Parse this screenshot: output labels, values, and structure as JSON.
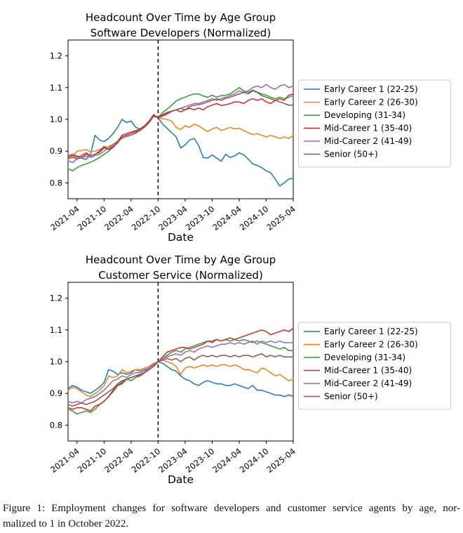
{
  "figure": {
    "caption_line1": "Figure 1: Employment changes for software developers and customer service agents by age, nor-",
    "caption_line2": "malized to 1 in October 2022."
  },
  "legend_border_color": "#cccccc",
  "vline_color": "#000000",
  "chart_data": [
    {
      "type": "line",
      "title": "Headcount Over Time by Age Group",
      "subtitle": "Software Developers (Normalized)",
      "xlabel": "Date",
      "ylabel": "",
      "ylim": [
        0.75,
        1.25
      ],
      "yticks": [
        0.8,
        0.9,
        1.0,
        1.1,
        1.2
      ],
      "grid": false,
      "legend_position": "center-right-outside",
      "vline_date": "2022-10",
      "x_dates": [
        "2021-02",
        "2021-03",
        "2021-04",
        "2021-05",
        "2021-06",
        "2021-07",
        "2021-08",
        "2021-09",
        "2021-10",
        "2021-11",
        "2021-12",
        "2022-01",
        "2022-02",
        "2022-03",
        "2022-04",
        "2022-05",
        "2022-06",
        "2022-07",
        "2022-08",
        "2022-09",
        "2022-10",
        "2022-11",
        "2022-12",
        "2023-01",
        "2023-02",
        "2023-03",
        "2023-04",
        "2023-05",
        "2023-06",
        "2023-07",
        "2023-08",
        "2023-09",
        "2023-10",
        "2023-11",
        "2023-12",
        "2024-01",
        "2024-02",
        "2024-03",
        "2024-04",
        "2024-05",
        "2024-06",
        "2024-07",
        "2024-08",
        "2024-09",
        "2024-10",
        "2024-11",
        "2024-12",
        "2025-01",
        "2025-02",
        "2025-03",
        "2025-04"
      ],
      "xtick_labels": [
        "2021-04",
        "2021-10",
        "2022-04",
        "2022-10",
        "2023-04",
        "2023-10",
        "2024-04",
        "2024-10",
        "2025-04"
      ],
      "series": [
        {
          "name": "Early Career 1 (22-25)",
          "color": "#1f77b4",
          "values": [
            0.885,
            0.89,
            0.885,
            0.878,
            0.874,
            0.89,
            0.95,
            0.935,
            0.93,
            0.94,
            0.955,
            0.975,
            1.0,
            0.99,
            0.995,
            0.975,
            0.97,
            0.976,
            0.99,
            1.015,
            1.005,
            0.985,
            0.972,
            0.958,
            0.945,
            0.91,
            0.92,
            0.935,
            0.94,
            0.918,
            0.88,
            0.878,
            0.888,
            0.878,
            0.868,
            0.89,
            0.88,
            0.885,
            0.895,
            0.888,
            0.875,
            0.86,
            0.855,
            0.848,
            0.838,
            0.832,
            0.812,
            0.79,
            0.8,
            0.812,
            0.815
          ]
        },
        {
          "name": "Early Career 2 (26-30)",
          "color": "#ff7f0e",
          "values": [
            0.89,
            0.885,
            0.9,
            0.902,
            0.905,
            0.898,
            0.9,
            0.905,
            0.91,
            0.915,
            0.922,
            0.932,
            0.95,
            0.955,
            0.96,
            0.965,
            0.97,
            0.976,
            0.99,
            1.012,
            1.005,
            1.002,
            1.0,
            0.995,
            0.975,
            0.968,
            0.98,
            0.975,
            0.985,
            0.98,
            0.97,
            0.962,
            0.97,
            0.975,
            0.965,
            0.97,
            0.975,
            0.97,
            0.972,
            0.965,
            0.958,
            0.952,
            0.955,
            0.95,
            0.945,
            0.95,
            0.945,
            0.94,
            0.945,
            0.94,
            0.95
          ]
        },
        {
          "name": "Developing (31-34)",
          "color": "#2ca02c",
          "values": [
            0.845,
            0.838,
            0.848,
            0.855,
            0.86,
            0.865,
            0.872,
            0.88,
            0.89,
            0.9,
            0.912,
            0.93,
            0.945,
            0.95,
            0.955,
            0.96,
            0.966,
            0.976,
            0.99,
            1.012,
            1.005,
            1.022,
            1.032,
            1.045,
            1.058,
            1.065,
            1.07,
            1.076,
            1.08,
            1.08,
            1.074,
            1.07,
            1.076,
            1.07,
            1.075,
            1.076,
            1.08,
            1.09,
            1.1,
            1.09,
            1.085,
            1.092,
            1.086,
            1.08,
            1.076,
            1.07,
            1.065,
            1.07,
            1.065,
            1.07,
            1.075
          ]
        },
        {
          "name": "Mid-Career 1 (35-40)",
          "color": "#d62728",
          "values": [
            0.88,
            0.886,
            0.88,
            0.886,
            0.895,
            0.885,
            0.89,
            0.9,
            0.915,
            0.905,
            0.912,
            0.926,
            0.95,
            0.955,
            0.96,
            0.964,
            0.97,
            0.98,
            0.995,
            1.015,
            1.005,
            1.015,
            1.022,
            1.026,
            1.03,
            1.024,
            1.03,
            1.035,
            1.03,
            1.036,
            1.03,
            1.04,
            1.045,
            1.05,
            1.044,
            1.046,
            1.05,
            1.055,
            1.055,
            1.05,
            1.06,
            1.065,
            1.06,
            1.065,
            1.055,
            1.05,
            1.06,
            1.065,
            1.06,
            1.076,
            1.08
          ]
        },
        {
          "name": "Mid-Career 2 (41-49)",
          "color": "#9467bd",
          "values": [
            0.87,
            0.864,
            0.875,
            0.88,
            0.884,
            0.88,
            0.886,
            0.89,
            0.9,
            0.91,
            0.92,
            0.93,
            0.94,
            0.946,
            0.95,
            0.956,
            0.965,
            0.976,
            0.99,
            1.01,
            1.005,
            1.01,
            1.016,
            1.025,
            1.03,
            1.035,
            1.04,
            1.045,
            1.05,
            1.05,
            1.055,
            1.06,
            1.065,
            1.06,
            1.066,
            1.07,
            1.075,
            1.08,
            1.09,
            1.085,
            1.09,
            1.1,
            1.105,
            1.1,
            1.11,
            1.1,
            1.095,
            1.105,
            1.11,
            1.1,
            1.105
          ]
        },
        {
          "name": "Senior (50+)",
          "color": "#8c564b",
          "values": [
            0.876,
            0.88,
            0.875,
            0.88,
            0.89,
            0.885,
            0.89,
            0.896,
            0.91,
            0.905,
            0.915,
            0.925,
            0.945,
            0.95,
            0.955,
            0.96,
            0.965,
            0.976,
            0.99,
            1.01,
            1.005,
            1.012,
            1.02,
            1.025,
            1.03,
            1.035,
            1.03,
            1.04,
            1.045,
            1.046,
            1.05,
            1.055,
            1.06,
            1.065,
            1.06,
            1.066,
            1.07,
            1.075,
            1.08,
            1.085,
            1.08,
            1.09,
            1.085,
            1.075,
            1.07,
            1.065,
            1.06,
            1.055,
            1.05,
            1.045,
            1.045
          ]
        }
      ]
    },
    {
      "type": "line",
      "title": "Headcount Over Time by Age Group",
      "subtitle": "Customer Service (Normalized)",
      "xlabel": "Date",
      "ylabel": "",
      "ylim": [
        0.75,
        1.25
      ],
      "yticks": [
        0.8,
        0.9,
        1.0,
        1.1,
        1.2
      ],
      "grid": false,
      "legend_position": "center-right-outside",
      "vline_date": "2022-10",
      "x_dates": [
        "2021-02",
        "2021-03",
        "2021-04",
        "2021-05",
        "2021-06",
        "2021-07",
        "2021-08",
        "2021-09",
        "2021-10",
        "2021-11",
        "2021-12",
        "2022-01",
        "2022-02",
        "2022-03",
        "2022-04",
        "2022-05",
        "2022-06",
        "2022-07",
        "2022-08",
        "2022-09",
        "2022-10",
        "2022-11",
        "2022-12",
        "2023-01",
        "2023-02",
        "2023-03",
        "2023-04",
        "2023-05",
        "2023-06",
        "2023-07",
        "2023-08",
        "2023-09",
        "2023-10",
        "2023-11",
        "2023-12",
        "2024-01",
        "2024-02",
        "2024-03",
        "2024-04",
        "2024-05",
        "2024-06",
        "2024-07",
        "2024-08",
        "2024-09",
        "2024-10",
        "2024-11",
        "2024-12",
        "2025-01",
        "2025-02",
        "2025-03",
        "2025-04"
      ],
      "xtick_labels": [
        "2021-04",
        "2021-10",
        "2022-04",
        "2022-10",
        "2023-04",
        "2023-10",
        "2024-04",
        "2024-10",
        "2025-04"
      ],
      "series": [
        {
          "name": "Early Career 1 (22-25)",
          "color": "#1f77b4",
          "values": [
            0.915,
            0.925,
            0.92,
            0.91,
            0.905,
            0.9,
            0.91,
            0.92,
            0.935,
            0.975,
            0.97,
            0.96,
            0.965,
            0.96,
            0.965,
            0.975,
            0.97,
            0.975,
            0.98,
            0.995,
            1.0,
            0.995,
            0.985,
            0.975,
            0.97,
            0.955,
            0.945,
            0.94,
            0.93,
            0.925,
            0.935,
            0.94,
            0.935,
            0.93,
            0.93,
            0.925,
            0.925,
            0.93,
            0.925,
            0.92,
            0.915,
            0.925,
            0.91,
            0.91,
            0.905,
            0.9,
            0.895,
            0.895,
            0.89,
            0.895,
            0.89
          ]
        },
        {
          "name": "Early Career 2 (26-30)",
          "color": "#ff7f0e",
          "values": [
            0.91,
            0.92,
            0.915,
            0.905,
            0.895,
            0.89,
            0.9,
            0.91,
            0.925,
            0.955,
            0.95,
            0.955,
            0.975,
            0.965,
            0.97,
            0.975,
            0.975,
            0.98,
            0.985,
            0.995,
            1.0,
            1.005,
            1.0,
            0.995,
            0.985,
            0.96,
            0.98,
            0.985,
            0.98,
            0.985,
            0.99,
            0.985,
            0.99,
            0.985,
            0.99,
            0.99,
            0.985,
            0.99,
            0.985,
            0.975,
            0.975,
            0.97,
            0.965,
            0.98,
            0.975,
            0.965,
            0.955,
            0.96,
            0.95,
            0.94,
            0.945
          ]
        },
        {
          "name": "Developing (31-34)",
          "color": "#2ca02c",
          "values": [
            0.85,
            0.845,
            0.835,
            0.84,
            0.845,
            0.84,
            0.85,
            0.865,
            0.875,
            0.89,
            0.905,
            0.925,
            0.935,
            0.945,
            0.94,
            0.95,
            0.955,
            0.965,
            0.975,
            0.985,
            1.0,
            1.01,
            1.02,
            1.03,
            1.035,
            1.03,
            1.04,
            1.045,
            1.05,
            1.055,
            1.06,
            1.065,
            1.065,
            1.07,
            1.065,
            1.07,
            1.065,
            1.07,
            1.065,
            1.07,
            1.065,
            1.06,
            1.065,
            1.06,
            1.055,
            1.05,
            1.045,
            1.04,
            1.045,
            1.035,
            1.035
          ]
        },
        {
          "name": "Mid-Career 1 (35-40)",
          "color": "#d62728",
          "values": [
            0.855,
            0.85,
            0.855,
            0.855,
            0.85,
            0.845,
            0.86,
            0.865,
            0.875,
            0.89,
            0.91,
            0.925,
            0.93,
            0.945,
            0.95,
            0.955,
            0.955,
            0.965,
            0.975,
            0.985,
            1.0,
            1.015,
            1.03,
            1.035,
            1.04,
            1.045,
            1.045,
            1.04,
            1.045,
            1.05,
            1.055,
            1.065,
            1.06,
            1.07,
            1.065,
            1.07,
            1.075,
            1.07,
            1.075,
            1.08,
            1.085,
            1.09,
            1.095,
            1.1,
            1.095,
            1.085,
            1.09,
            1.095,
            1.1,
            1.095,
            1.105
          ]
        },
        {
          "name": "Mid-Career 2 (41-49)",
          "color": "#9467bd",
          "values": [
            0.875,
            0.87,
            0.875,
            0.87,
            0.88,
            0.885,
            0.89,
            0.9,
            0.91,
            0.925,
            0.94,
            0.945,
            0.955,
            0.95,
            0.96,
            0.965,
            0.965,
            0.97,
            0.98,
            0.99,
            1.0,
            1.01,
            1.015,
            1.02,
            1.025,
            1.02,
            1.03,
            1.035,
            1.03,
            1.04,
            1.045,
            1.05,
            1.045,
            1.05,
            1.055,
            1.055,
            1.06,
            1.055,
            1.06,
            1.055,
            1.06,
            1.065,
            1.055,
            1.065,
            1.06,
            1.065,
            1.06,
            1.065,
            1.06,
            1.06,
            1.06
          ]
        },
        {
          "name": "Senior (50+)",
          "color": "#8c564b",
          "values": [
            0.865,
            0.86,
            0.865,
            0.87,
            0.865,
            0.87,
            0.875,
            0.885,
            0.895,
            0.905,
            0.915,
            0.93,
            0.94,
            0.945,
            0.95,
            0.955,
            0.96,
            0.965,
            0.975,
            0.985,
            1.0,
            1.005,
            1.01,
            1.005,
            1.01,
            1.0,
            1.01,
            1.015,
            1.005,
            1.015,
            1.02,
            1.015,
            1.02,
            1.015,
            1.02,
            1.02,
            1.015,
            1.02,
            1.015,
            1.02,
            1.02,
            1.015,
            1.02,
            1.025,
            1.015,
            1.02,
            1.015,
            1.02,
            1.015,
            1.015,
            1.015
          ]
        }
      ]
    }
  ]
}
